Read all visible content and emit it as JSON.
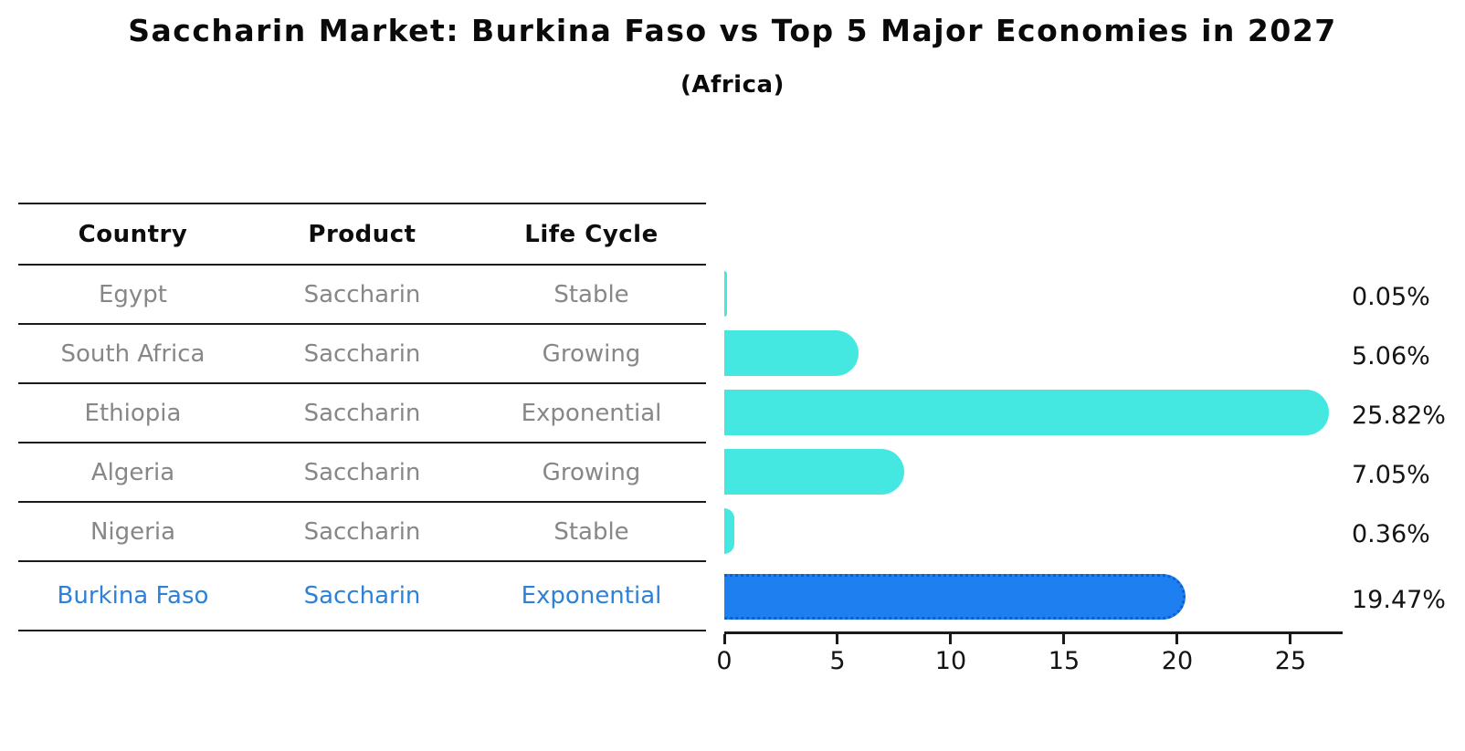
{
  "title": "Saccharin Market: Burkina Faso vs Top 5 Major Economies in 2027",
  "subtitle": "(Africa)",
  "table": {
    "columns": [
      "Country",
      "Product",
      "Life Cycle"
    ],
    "rows": [
      {
        "country": "Egypt",
        "product": "Saccharin",
        "life_cycle": "Stable",
        "highlight": false
      },
      {
        "country": "South Africa",
        "product": "Saccharin",
        "life_cycle": "Growing",
        "highlight": false
      },
      {
        "country": "Ethiopia",
        "product": "Saccharin",
        "life_cycle": "Exponential",
        "highlight": false
      },
      {
        "country": "Algeria",
        "product": "Saccharin",
        "life_cycle": "Growing",
        "highlight": false
      },
      {
        "country": "Nigeria",
        "product": "Saccharin",
        "life_cycle": "Stable",
        "highlight": false
      },
      {
        "country": "Burkina Faso",
        "product": "Saccharin",
        "life_cycle": "Exponential",
        "highlight": true
      }
    ],
    "body_text_color": "#878787",
    "highlight_text_color": "#2e81d8"
  },
  "chart_data": {
    "type": "bar",
    "orientation": "horizontal",
    "title": "Saccharin Market: Burkina Faso vs Top 5 Major Economies in 2027",
    "subtitle": "(Africa)",
    "categories": [
      "Egypt",
      "South Africa",
      "Ethiopia",
      "Algeria",
      "Nigeria",
      "Burkina Faso"
    ],
    "values": [
      0.05,
      5.06,
      25.82,
      7.05,
      0.36,
      19.47
    ],
    "value_labels": [
      "0.05%",
      "5.06%",
      "25.82%",
      "7.05%",
      "0.36%",
      "19.47%"
    ],
    "xticks": [
      0,
      5,
      10,
      15,
      20,
      25
    ],
    "xlim": [
      0,
      27.3
    ],
    "grid": false,
    "legend": false,
    "bar_color": "#45e8e1",
    "highlight_index": 5,
    "highlight_color": "#1e80f0",
    "highlight_border_color": "#0d5ecf",
    "value_label_color": "#141414",
    "axis_color": "#1a1a1a"
  }
}
